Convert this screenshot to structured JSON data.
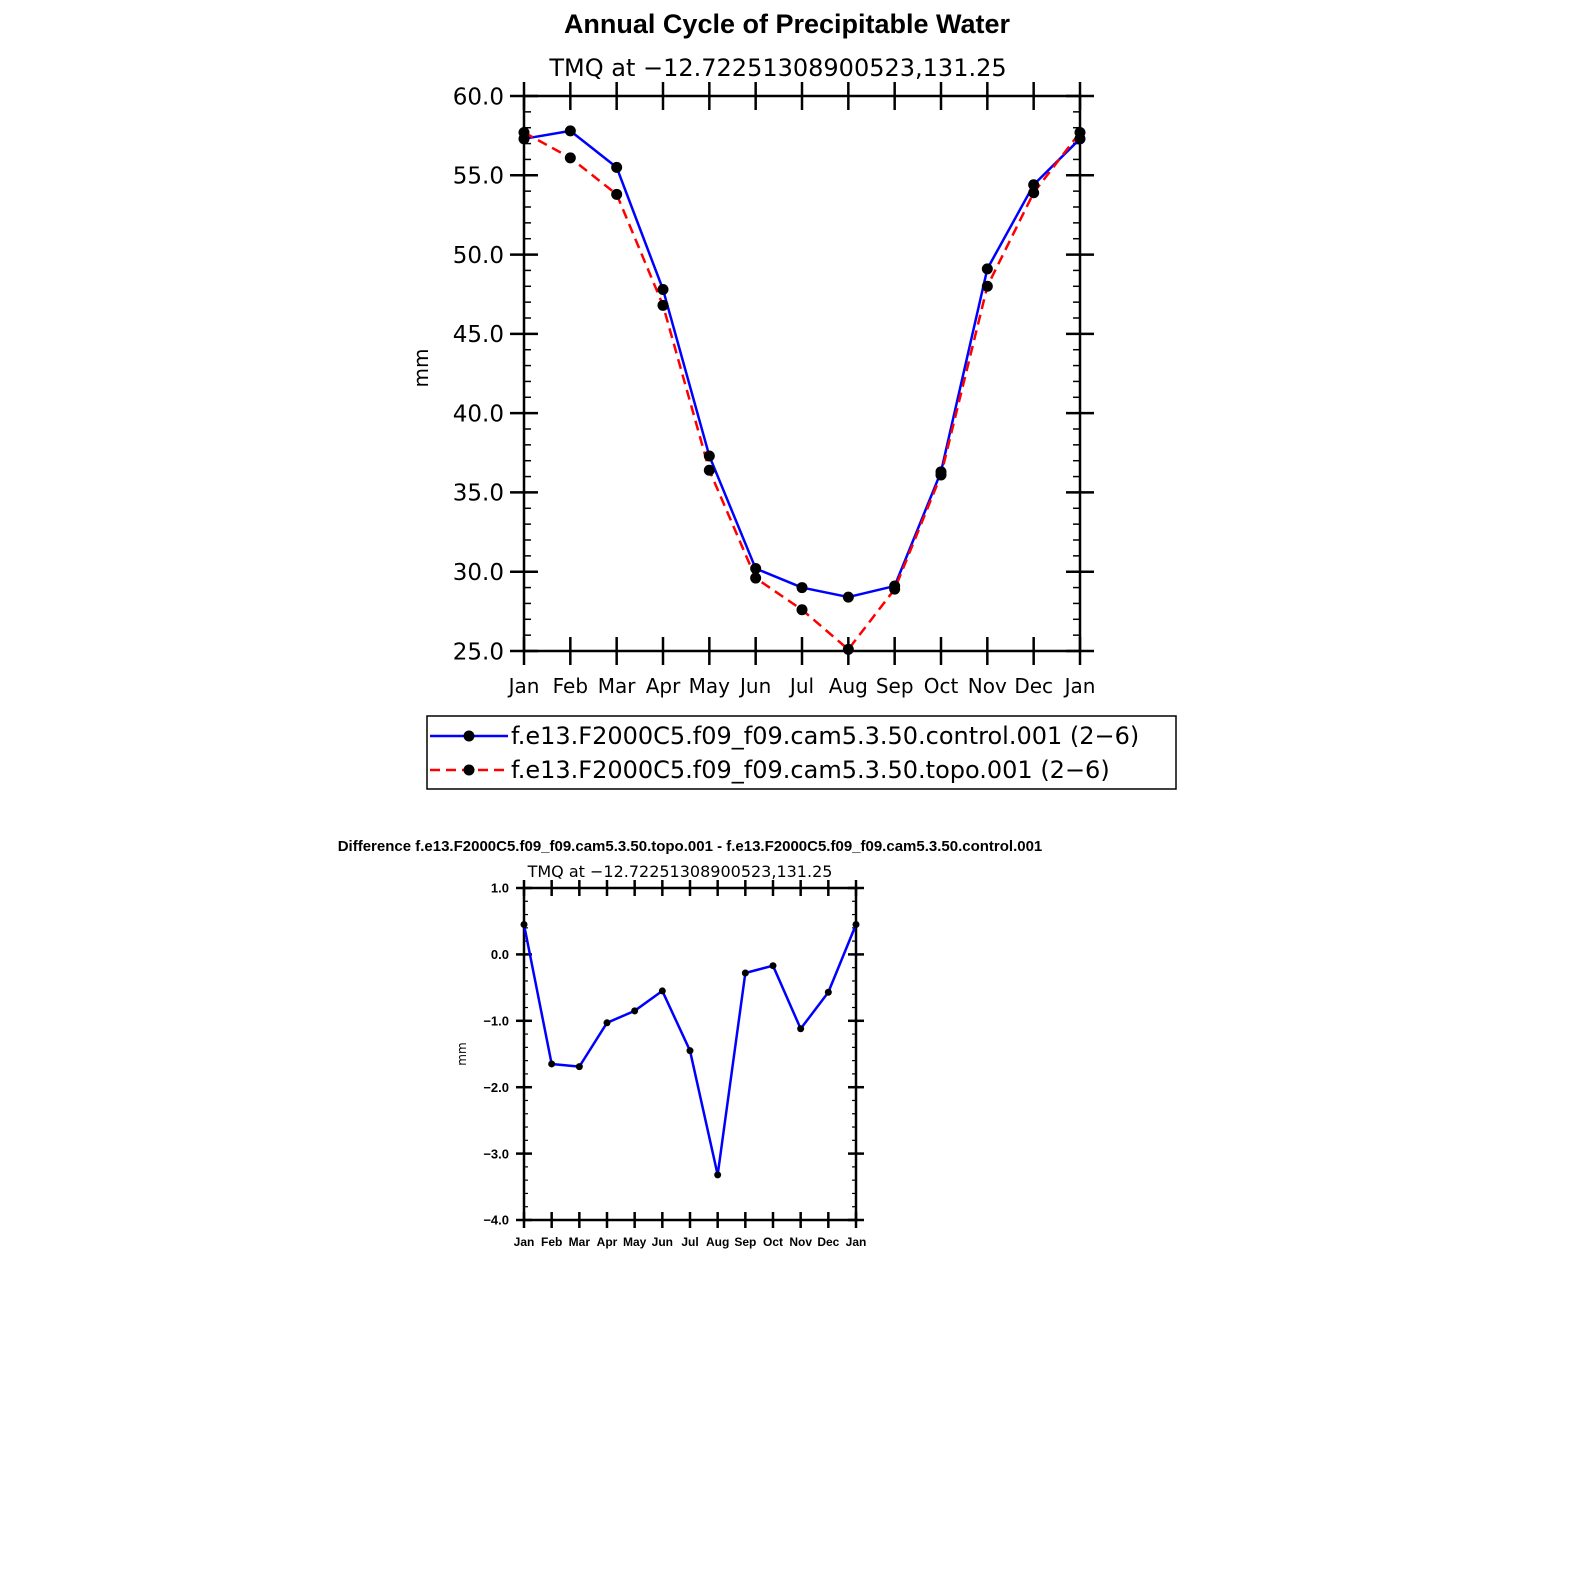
{
  "chart_data": [
    {
      "type": "line",
      "title": "Annual Cycle of Precipitable Water",
      "subtitle": "TMQ  at  −12.72251308900523,131.25",
      "ylabel": "mm",
      "xlabel": "",
      "ylim": [
        25.0,
        60.0
      ],
      "yticks": [
        "25.0",
        "30.0",
        "35.0",
        "40.0",
        "45.0",
        "50.0",
        "55.0",
        "60.0"
      ],
      "categories": [
        "Jan",
        "Feb",
        "Mar",
        "Apr",
        "May",
        "Jun",
        "Jul",
        "Aug",
        "Sep",
        "Oct",
        "Nov",
        "Dec",
        "Jan"
      ],
      "series": [
        {
          "name": "f.e13.F2000C5.f09_f09.cam5.3.50.control.001  (2−6)",
          "color": "#0000ff",
          "dash": "solid",
          "values": [
            57.3,
            57.8,
            55.5,
            47.8,
            37.3,
            30.2,
            29.0,
            28.4,
            29.1,
            36.3,
            49.1,
            54.4,
            57.3
          ]
        },
        {
          "name": "f.e13.F2000C5.f09_f09.cam5.3.50.topo.001  (2−6)",
          "color": "#ff0000",
          "dash": "dashed",
          "values": [
            57.7,
            56.1,
            53.8,
            46.8,
            36.4,
            29.6,
            27.6,
            25.1,
            28.9,
            36.1,
            48.0,
            53.9,
            57.7
          ]
        }
      ],
      "legend": "below"
    },
    {
      "type": "line",
      "title": "Difference f.e13.F2000C5.f09_f09.cam5.3.50.topo.001 - f.e13.F2000C5.f09_f09.cam5.3.50.control.001",
      "subtitle": "TMQ  at  −12.72251308900523,131.25",
      "ylabel": "mm",
      "xlabel": "",
      "ylim": [
        -4.0,
        1.0
      ],
      "yticks": [
        "−4.0",
        "−3.0",
        "−2.0",
        "−1.0",
        "0.0",
        "1.0"
      ],
      "categories": [
        "Jan",
        "Feb",
        "Mar",
        "Apr",
        "May",
        "Jun",
        "Jul",
        "Aug",
        "Sep",
        "Oct",
        "Nov",
        "Dec",
        "Jan"
      ],
      "series": [
        {
          "name": "difference",
          "color": "#0000ff",
          "dash": "solid",
          "values": [
            0.45,
            -1.65,
            -1.69,
            -1.03,
            -0.85,
            -0.55,
            -1.45,
            -3.32,
            -0.28,
            -0.17,
            -1.12,
            -0.57,
            0.45
          ]
        }
      ]
    }
  ]
}
